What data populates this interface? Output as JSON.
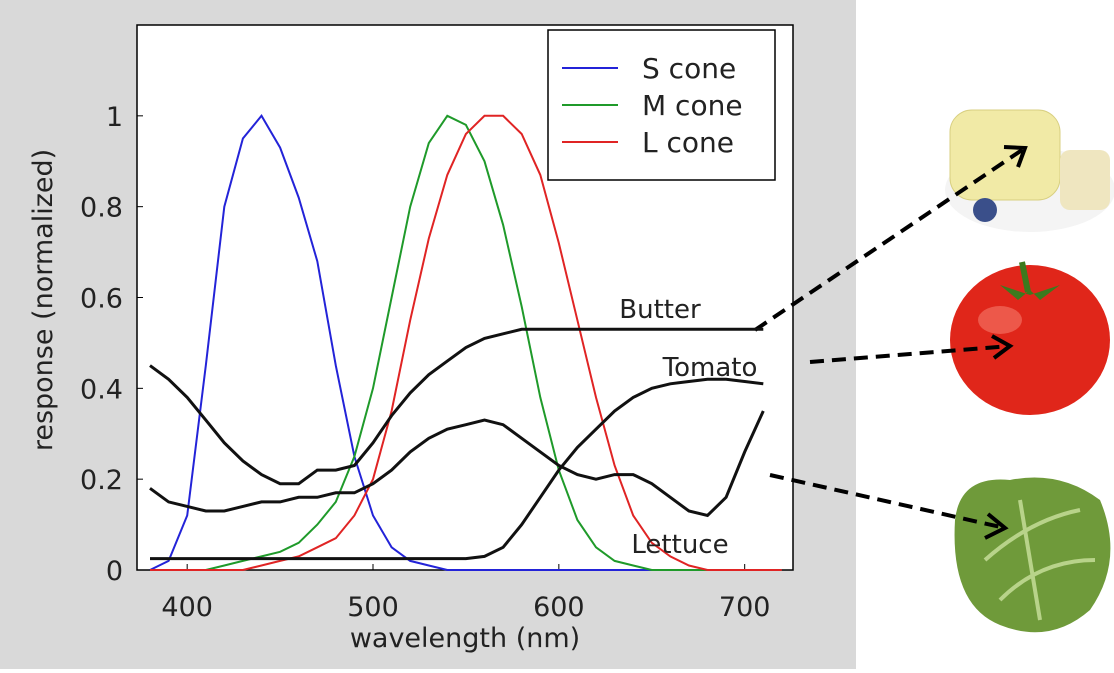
{
  "chart_data": {
    "type": "line",
    "x_label": "wavelength (nm)",
    "y_label": "response (normalized)",
    "xlim": [
      373,
      726
    ],
    "ylim": [
      0,
      1.2
    ],
    "xticks": [
      400,
      500,
      600,
      700
    ],
    "yticks": [
      0,
      0.2,
      0.4,
      0.6,
      0.8,
      1
    ],
    "x": [
      380,
      390,
      400,
      410,
      420,
      430,
      440,
      450,
      460,
      470,
      480,
      490,
      500,
      510,
      520,
      530,
      540,
      550,
      560,
      570,
      580,
      590,
      600,
      610,
      620,
      630,
      640,
      650,
      660,
      670,
      680,
      690,
      700,
      710,
      720
    ],
    "series": [
      {
        "name": "S cone",
        "color": "#2323d8",
        "in_legend": true,
        "values": [
          0,
          0.02,
          0.12,
          0.45,
          0.8,
          0.95,
          1.0,
          0.93,
          0.82,
          0.68,
          0.45,
          0.25,
          0.12,
          0.05,
          0.02,
          0.01,
          0,
          0,
          0,
          0,
          0,
          0,
          0,
          0,
          0,
          0,
          0,
          0,
          0,
          0,
          0,
          0,
          0,
          0,
          0
        ]
      },
      {
        "name": "M cone",
        "color": "#1f9a2a",
        "in_legend": true,
        "values": [
          0,
          0,
          0,
          0,
          0.01,
          0.02,
          0.03,
          0.04,
          0.06,
          0.1,
          0.15,
          0.25,
          0.4,
          0.6,
          0.8,
          0.94,
          1.0,
          0.98,
          0.9,
          0.76,
          0.58,
          0.38,
          0.22,
          0.11,
          0.05,
          0.02,
          0.01,
          0,
          0,
          0,
          0,
          0,
          0,
          0,
          0
        ]
      },
      {
        "name": "L cone",
        "color": "#e02424",
        "in_legend": true,
        "values": [
          0,
          0,
          0,
          0,
          0,
          0,
          0.01,
          0.02,
          0.03,
          0.05,
          0.07,
          0.12,
          0.2,
          0.35,
          0.55,
          0.73,
          0.87,
          0.96,
          1.0,
          1.0,
          0.96,
          0.87,
          0.72,
          0.55,
          0.38,
          0.23,
          0.12,
          0.06,
          0.03,
          0.01,
          0,
          0,
          0,
          0,
          0
        ]
      },
      {
        "name": "Butter",
        "color": "#111111",
        "in_legend": false,
        "values": [
          0.45,
          0.42,
          0.38,
          0.33,
          0.28,
          0.24,
          0.21,
          0.19,
          0.19,
          0.22,
          0.22,
          0.23,
          0.28,
          0.34,
          0.39,
          0.43,
          0.46,
          0.49,
          0.51,
          0.52,
          0.53,
          0.53,
          0.53,
          0.53,
          0.53,
          0.53,
          0.53,
          0.53,
          0.53,
          0.53,
          0.53,
          0.53,
          0.53,
          0.53,
          null
        ]
      },
      {
        "name": "Tomato",
        "color": "#111111",
        "in_legend": false,
        "values": [
          0.025,
          0.025,
          0.025,
          0.025,
          0.025,
          0.025,
          0.025,
          0.025,
          0.025,
          0.025,
          0.025,
          0.025,
          0.025,
          0.025,
          0.025,
          0.025,
          0.025,
          0.025,
          0.03,
          0.05,
          0.1,
          0.16,
          0.22,
          0.27,
          0.31,
          0.35,
          0.38,
          0.4,
          0.41,
          0.415,
          0.42,
          0.42,
          0.415,
          0.41,
          null
        ]
      },
      {
        "name": "Lettuce",
        "color": "#111111",
        "in_legend": false,
        "values": [
          0.18,
          0.15,
          0.14,
          0.13,
          0.13,
          0.14,
          0.15,
          0.15,
          0.16,
          0.16,
          0.17,
          0.17,
          0.19,
          0.22,
          0.26,
          0.29,
          0.31,
          0.32,
          0.33,
          0.32,
          0.29,
          0.26,
          0.23,
          0.21,
          0.2,
          0.21,
          0.21,
          0.19,
          0.16,
          0.13,
          0.12,
          0.16,
          0.26,
          0.35,
          null
        ]
      }
    ]
  }
}
